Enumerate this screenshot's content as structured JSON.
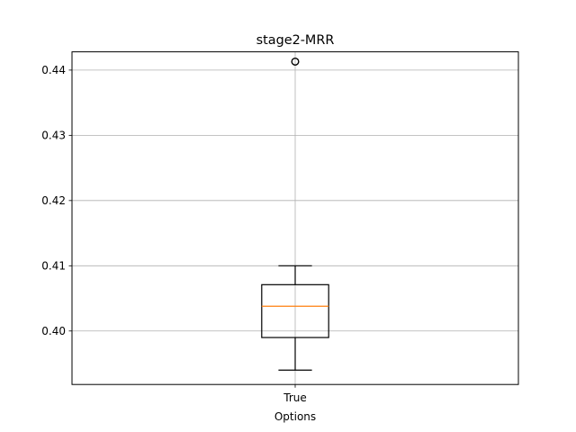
{
  "chart_data": {
    "type": "box",
    "title": "stage2-MRR",
    "xlabel": "Options",
    "ylabel": "",
    "categories": [
      "True"
    ],
    "ylim": [
      0.3918,
      0.4428
    ],
    "yticks": [
      0.4,
      0.41,
      0.42,
      0.43,
      0.44
    ],
    "ytick_labels": [
      "0.40",
      "0.41",
      "0.42",
      "0.43",
      "0.44"
    ],
    "grid": true,
    "boxes": [
      {
        "category": "True",
        "whisker_low": 0.394,
        "q1": 0.399,
        "median": 0.4038,
        "q3": 0.4071,
        "whisker_high": 0.41,
        "outliers": [
          0.4413
        ]
      }
    ],
    "colors": {
      "box": "#000000",
      "median": "#ff7f0e",
      "grid": "#b0b0b0",
      "axes": "#000000"
    }
  }
}
